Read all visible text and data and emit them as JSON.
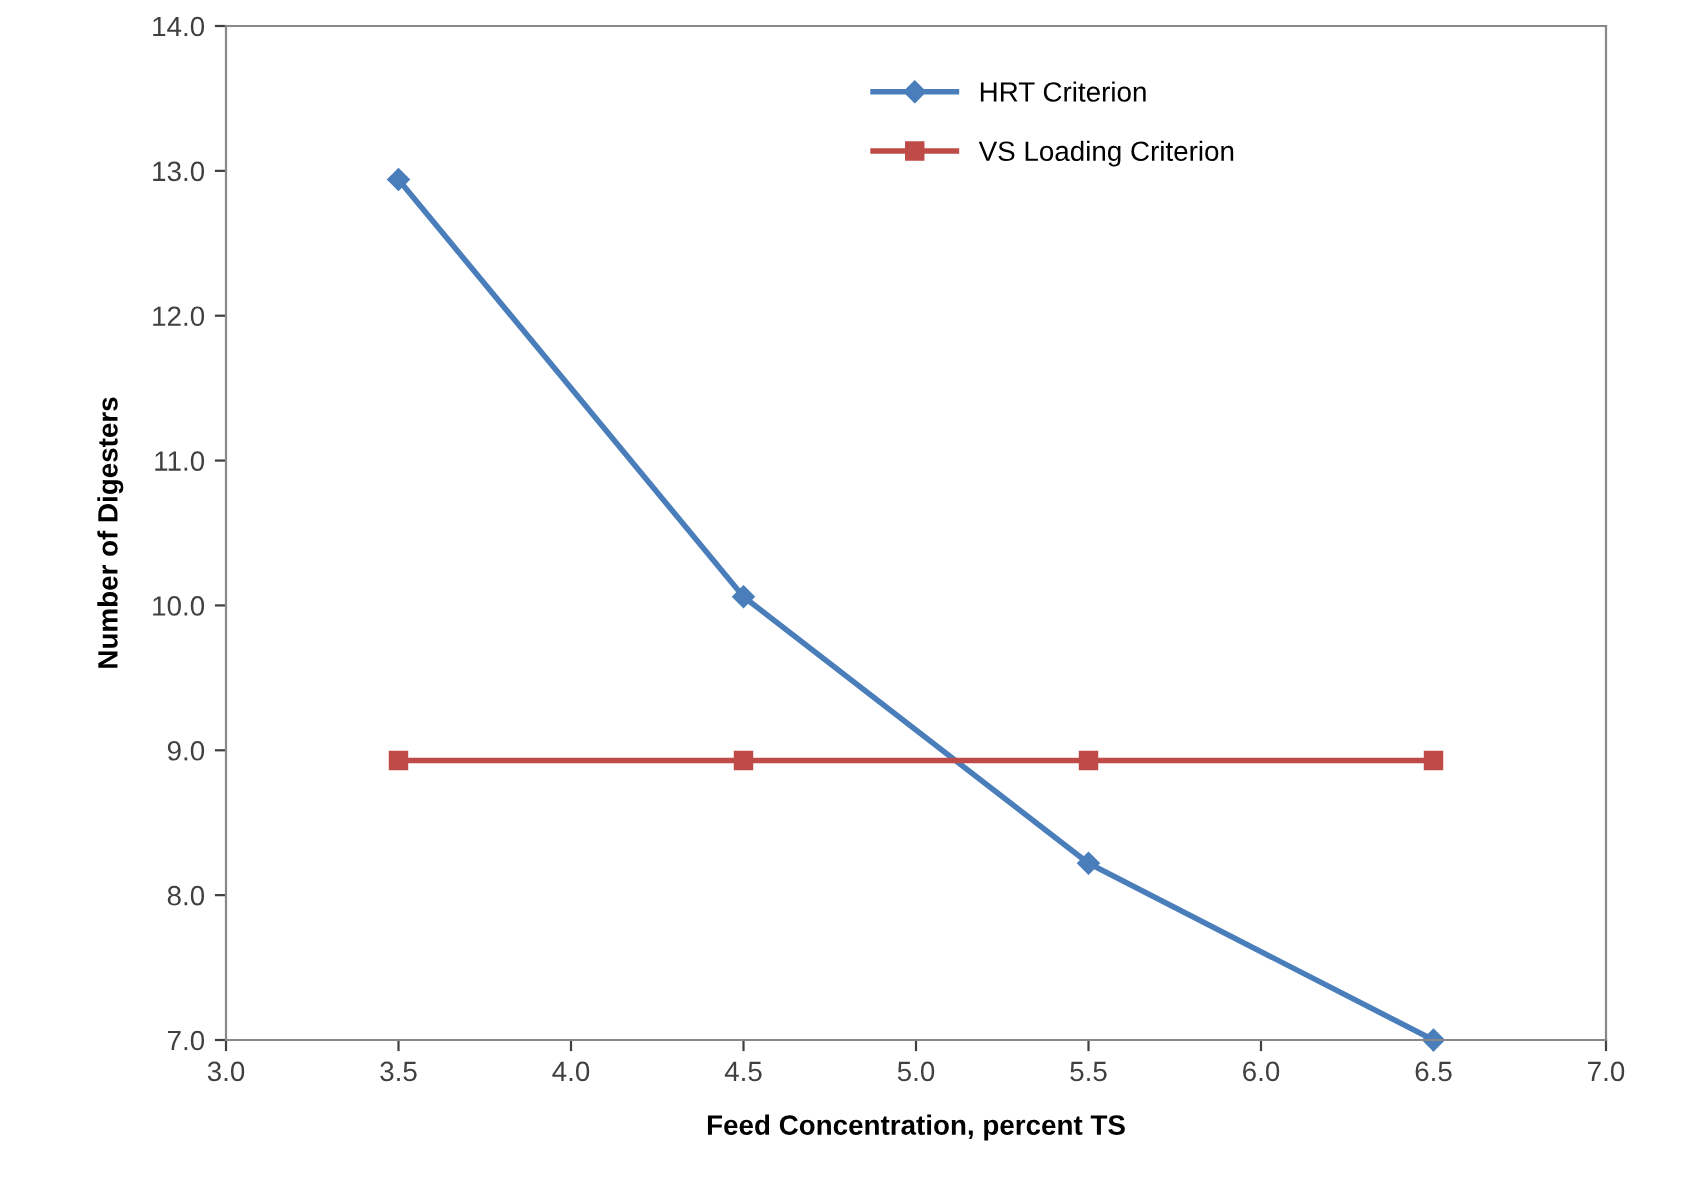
{
  "chart_data": {
    "type": "line",
    "xlabel": "Feed Concentration, percent TS",
    "ylabel": "Number of Digesters",
    "x": [
      3.5,
      4.5,
      5.5,
      6.5
    ],
    "series": [
      {
        "name": "HRT Criterion",
        "color": "#4a7ebb",
        "marker": "diamond",
        "values": [
          12.94,
          10.06,
          8.22,
          7.0
        ]
      },
      {
        "name": "VS Loading Criterion",
        "color": "#be4b48",
        "marker": "square",
        "values": [
          8.93,
          8.93,
          8.93,
          8.93
        ]
      }
    ],
    "xlim": [
      3.0,
      7.0
    ],
    "xticks": [
      {
        "value": 3,
        "label": "3.0"
      },
      {
        "value": 3.5,
        "label": "3.5"
      },
      {
        "value": 4,
        "label": "4.0"
      },
      {
        "value": 4.5,
        "label": "4.5"
      },
      {
        "value": 5,
        "label": "5.0"
      },
      {
        "value": 5.5,
        "label": "5.5"
      },
      {
        "value": 6,
        "label": "6.0"
      },
      {
        "value": 6.5,
        "label": "6.5"
      },
      {
        "value": 7,
        "label": "7.0"
      }
    ],
    "ylim": [
      7.0,
      14.0
    ],
    "yticks": [
      {
        "value": 7,
        "label": "7.0"
      },
      {
        "value": 8,
        "label": "8.0"
      },
      {
        "value": 9,
        "label": "9.0"
      },
      {
        "value": 10,
        "label": "10.0"
      },
      {
        "value": 11,
        "label": "11.0"
      },
      {
        "value": 12,
        "label": "12.0"
      },
      {
        "value": 13,
        "label": "13.0"
      },
      {
        "value": 14,
        "label": "14.0"
      }
    ],
    "grid": false,
    "legend": "top",
    "line_style": "solid"
  }
}
